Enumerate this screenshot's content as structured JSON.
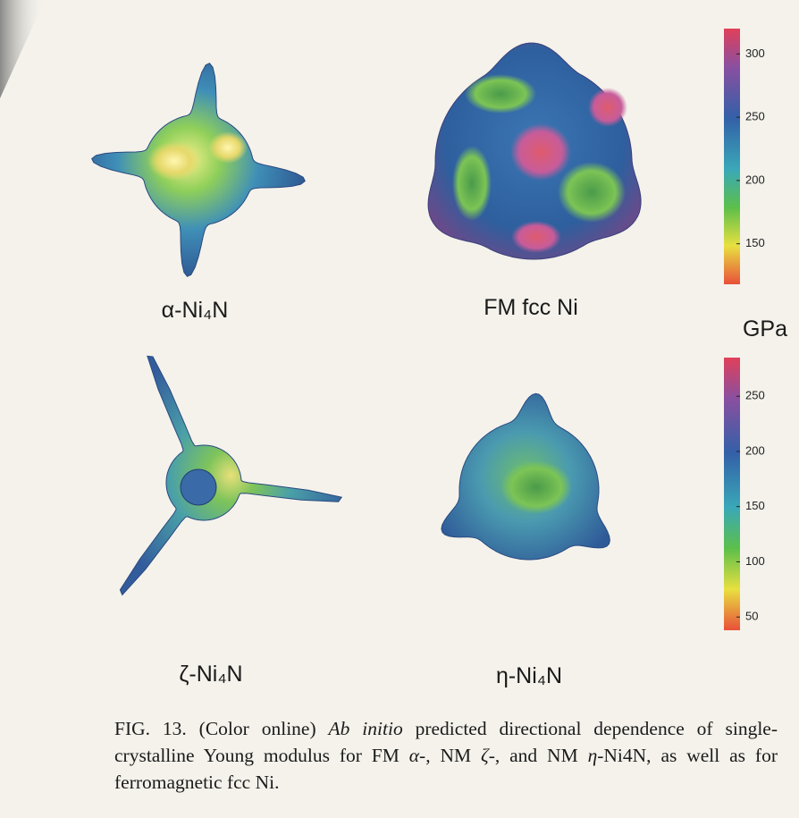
{
  "panels": [
    {
      "label": "α-Ni₄N"
    },
    {
      "label": "FM fcc Ni"
    },
    {
      "label": "ζ-Ni₄N"
    },
    {
      "label": "η-Ni₄N"
    }
  ],
  "colorbars": [
    {
      "unit": "GPa",
      "lim": [
        118,
        320
      ],
      "ticks": [
        300,
        250,
        200,
        150
      ]
    },
    {
      "lim": [
        38,
        285
      ],
      "ticks": [
        250,
        200,
        150,
        100,
        50
      ]
    }
  ],
  "caption": [
    {
      "text": "FIG. 13. (Color online) "
    },
    {
      "text": "Ab initio",
      "italic": true
    },
    {
      "text": " predicted directional dependence of single-crystalline Young modulus for FM "
    },
    {
      "text": "α",
      "italic": true
    },
    {
      "text": "-, NM "
    },
    {
      "text": "ζ",
      "italic": true
    },
    {
      "text": "-, and NM "
    },
    {
      "text": "η",
      "italic": true
    },
    {
      "text": "-Ni4N, as well as for ferromagnetic fcc Ni."
    }
  ]
}
